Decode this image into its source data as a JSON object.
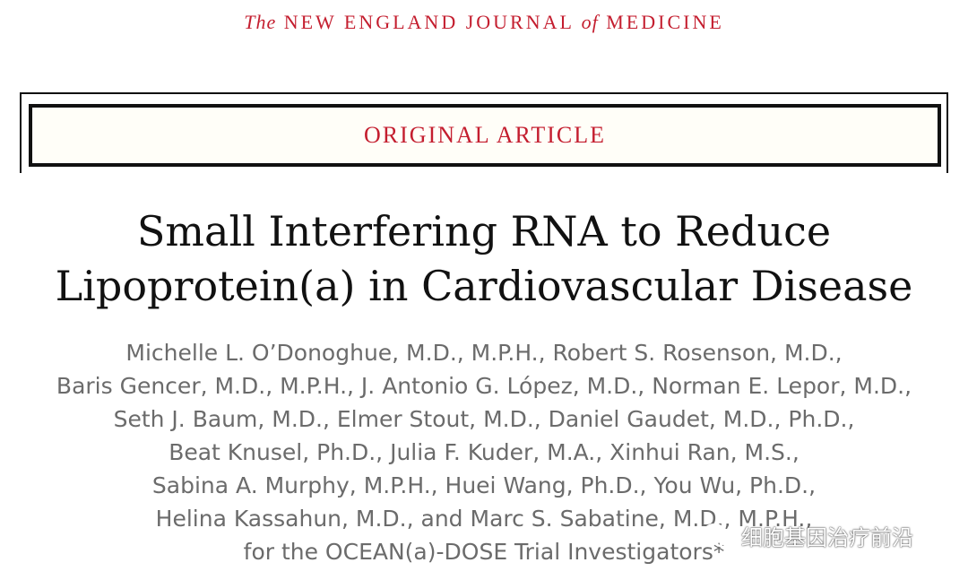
{
  "journal": {
    "pre": "The",
    "part1": "NEW ENGLAND JOURNAL",
    "of": "of",
    "part2": "MEDICINE"
  },
  "section_label": "ORIGINAL ARTICLE",
  "title_lines": [
    "Small Interfering RNA to Reduce",
    "Lipoprotein(a) in Cardiovascular Disease"
  ],
  "author_lines": [
    "Michelle L. O’Donoghue, M.D., M.P.H., Robert S. Rosenson, M.D.,",
    "Baris Gencer, M.D., M.P.H., J. Antonio G. López, M.D., Norman E. Lepor, M.D.,",
    "Seth J. Baum, M.D., Elmer Stout, M.D., Daniel Gaudet, M.D., Ph.D.,",
    "Beat Knusel, Ph.D., Julia F. Kuder, M.A., Xinhui Ran, M.S.,",
    "Sabina A. Murphy, M.P.H., Huei Wang, Ph.D., You Wu, Ph.D.,",
    "Helina Kassahun, M.D., and Marc S. Sabatine, M.D., M.P.H.,",
    "for the OCEAN(a)-DOSE Trial Investigators*"
  ],
  "watermark": {
    "text": "细胞基因治疗前沿",
    "icon": "wechat-icon"
  }
}
